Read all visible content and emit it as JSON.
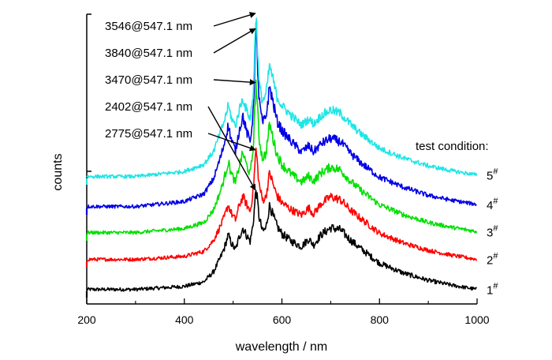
{
  "chart_data": {
    "type": "line",
    "xlabel": "wavelength / nm",
    "ylabel": "counts",
    "xlim": [
      200,
      1000
    ],
    "xticks": [
      "200",
      "400",
      "600",
      "800",
      "1000"
    ],
    "y_ticks_labeled": false,
    "grid": false,
    "legend_title": "test condition:",
    "legend_placement": "right, next to each curve",
    "annotation_placement": "upper-left, arrows to peaks",
    "series": [
      {
        "name": "1",
        "sup": "#",
        "color": "#000000",
        "offset": 0,
        "x": [
          200,
          300,
          400,
          440,
          460,
          475,
          482,
          490,
          497,
          505,
          512,
          520,
          527,
          535,
          541,
          547,
          553,
          560,
          567,
          575,
          582,
          590,
          600,
          620,
          640,
          655,
          665,
          680,
          700,
          720,
          740,
          760,
          800,
          850,
          900,
          950,
          1000
        ],
        "y": [
          10,
          10,
          16,
          25,
          45,
          75,
          92,
          118,
          100,
          88,
          112,
          132,
          118,
          105,
          140,
          210,
          155,
          125,
          130,
          178,
          155,
          135,
          120,
          105,
          95,
          110,
          98,
          118,
          132,
          128,
          108,
          92,
          62,
          42,
          28,
          18,
          10
        ]
      },
      {
        "name": "2",
        "sup": "#",
        "color": "#ff0000",
        "offset": 38,
        "x": [
          200,
          300,
          400,
          440,
          460,
          475,
          482,
          490,
          497,
          505,
          512,
          520,
          527,
          535,
          541,
          547,
          553,
          560,
          567,
          575,
          582,
          590,
          600,
          620,
          640,
          655,
          665,
          680,
          700,
          720,
          740,
          760,
          800,
          850,
          900,
          950,
          1000
        ],
        "y": [
          10,
          10,
          16,
          26,
          48,
          78,
          94,
          118,
          100,
          88,
          115,
          135,
          120,
          105,
          145,
          230,
          160,
          128,
          132,
          182,
          158,
          136,
          122,
          108,
          98,
          112,
          100,
          120,
          134,
          128,
          108,
          92,
          62,
          42,
          28,
          18,
          10
        ]
      },
      {
        "name": "3",
        "sup": "#",
        "color": "#00e000",
        "offset": 72,
        "x": [
          200,
          300,
          400,
          440,
          460,
          475,
          482,
          490,
          497,
          505,
          512,
          520,
          527,
          535,
          541,
          547,
          553,
          560,
          567,
          575,
          582,
          590,
          600,
          620,
          640,
          655,
          665,
          680,
          700,
          720,
          740,
          760,
          800,
          850,
          900,
          950,
          1000
        ],
        "y": [
          10,
          10,
          18,
          30,
          55,
          95,
          118,
          150,
          125,
          108,
          140,
          168,
          145,
          125,
          175,
          310,
          198,
          158,
          165,
          225,
          195,
          165,
          145,
          125,
          110,
          122,
          112,
          128,
          140,
          134,
          112,
          95,
          65,
          45,
          30,
          20,
          12
        ]
      },
      {
        "name": "4",
        "sup": "#",
        "color": "#0000e6",
        "offset": 105,
        "x": [
          200,
          300,
          400,
          440,
          460,
          475,
          482,
          490,
          497,
          505,
          512,
          520,
          527,
          535,
          541,
          547,
          553,
          560,
          567,
          575,
          582,
          590,
          600,
          620,
          640,
          655,
          665,
          680,
          700,
          720,
          740,
          760,
          800,
          850,
          900,
          950,
          1000
        ],
        "y": [
          10,
          10,
          20,
          35,
          65,
          110,
          135,
          170,
          140,
          120,
          158,
          190,
          160,
          138,
          195,
          365,
          222,
          175,
          185,
          248,
          215,
          180,
          160,
          138,
          118,
          130,
          118,
          134,
          145,
          138,
          116,
          98,
          68,
          48,
          32,
          22,
          14
        ]
      },
      {
        "name": "5",
        "sup": "#",
        "color": "#1ee6e6",
        "offset": 143,
        "x": [
          200,
          300,
          400,
          440,
          460,
          475,
          482,
          490,
          497,
          505,
          512,
          520,
          527,
          535,
          541,
          547,
          553,
          560,
          567,
          575,
          582,
          590,
          600,
          620,
          640,
          655,
          665,
          680,
          700,
          720,
          740,
          760,
          800,
          850,
          900,
          950,
          1000
        ],
        "y": [
          10,
          10,
          20,
          34,
          60,
          100,
          120,
          150,
          125,
          110,
          140,
          165,
          142,
          125,
          170,
          336,
          195,
          160,
          170,
          230,
          200,
          168,
          150,
          130,
          112,
          124,
          114,
          130,
          142,
          135,
          114,
          96,
          66,
          46,
          31,
          21,
          13
        ]
      }
    ],
    "annotations": [
      {
        "text": "3546@547.1 nm",
        "target_series": "5",
        "x": 547.1
      },
      {
        "text": "3840@547.1 nm",
        "target_series": "4",
        "x": 547.1
      },
      {
        "text": "3470@547.1 nm",
        "target_series": "3",
        "x": 547.1
      },
      {
        "text": "2402@547.1 nm",
        "target_series": "1",
        "x": 547.1
      },
      {
        "text": "2775@547.1 nm",
        "target_series": "2",
        "x": 547.1
      }
    ]
  }
}
